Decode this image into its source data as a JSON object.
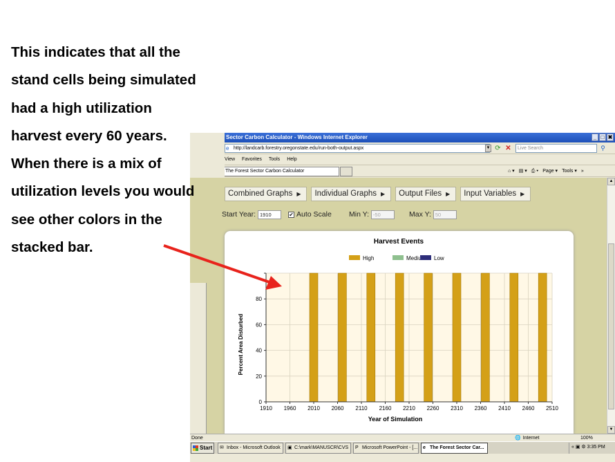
{
  "slide": {
    "lines": [
      "This indicates that all the",
      "stand cells being simulated",
      "had a high utilization",
      "harvest every 60 years.",
      "When there is a mix of",
      "utilization levels you would",
      "see other colors in the",
      "stacked bar."
    ]
  },
  "browser": {
    "title": "Sector Carbon Calculator - Windows Internet Explorer",
    "title_buttons": [
      "_",
      "□",
      "✖"
    ],
    "address": "http://landcarb.forestry.oregonstate.edu/run-both-output.aspx",
    "search_placeholder": "Live Search",
    "menu": [
      "View",
      "Favorites",
      "Tools",
      "Help"
    ],
    "tab_title": "The Forest Sector Carbon Calculator",
    "toolbar_items": [
      "⌂ ▾",
      "▤ ▾",
      "⎙ ▾",
      "Page ▾",
      "Tools ▾",
      "»"
    ],
    "status_text": "Done",
    "zone_text": "Internet",
    "zoom_text": "100%"
  },
  "page": {
    "menu": [
      "Combined Graphs",
      "Individual Graphs",
      "Output Files",
      "Input Variables"
    ],
    "start_year_label": "Start Year:",
    "start_year_value": "1910",
    "auto_scale_label": "Auto Scale",
    "auto_scale_checked": "✔",
    "min_y_label": "Min Y:",
    "min_y_value": "-50",
    "max_y_label": "Max Y:",
    "max_y_value": "50"
  },
  "chart_data": {
    "type": "bar",
    "stacked": true,
    "title": "Harvest Events",
    "xlabel": "Year of Simulation",
    "ylabel": "Percent Area Disturbed",
    "ylim": [
      0,
      100
    ],
    "xlim": [
      1910,
      2510
    ],
    "x_ticks": [
      1910,
      1960,
      2010,
      2060,
      2110,
      2160,
      2210,
      2260,
      2310,
      2360,
      2410,
      2460,
      2510
    ],
    "y_ticks": [
      0,
      20,
      40,
      60,
      80,
      100
    ],
    "x_tick_labels": [
      "1910",
      "1960",
      "2010",
      "2060",
      "2110",
      "2160",
      "2210",
      "2260",
      "2310",
      "2360",
      "2410",
      "2460",
      "2510"
    ],
    "y_tick_labels": [
      "0",
      "20",
      "40",
      "60",
      "80"
    ],
    "grid": true,
    "legend_position": "top",
    "x": [
      2010,
      2070,
      2130,
      2190,
      2250,
      2310,
      2370,
      2430,
      2490
    ],
    "series": [
      {
        "name": "High",
        "color": "#d4a017",
        "values": [
          100,
          100,
          100,
          100,
          100,
          100,
          100,
          100,
          100
        ]
      },
      {
        "name": "Medium",
        "color": "#8fc08f",
        "values": [
          0,
          0,
          0,
          0,
          0,
          0,
          0,
          0,
          0
        ]
      },
      {
        "name": "Low",
        "color": "#2e2e7a",
        "values": [
          0,
          0,
          0,
          0,
          0,
          0,
          0,
          0,
          0
        ]
      }
    ]
  },
  "taskbar": {
    "start_label": "Start",
    "tasks": [
      {
        "label": "Inbox - Microsoft Outlook",
        "icon": "✉"
      },
      {
        "label": "C:\\mark\\MANUSCR\\CVS",
        "icon": "▣"
      },
      {
        "label": "Microsoft PowerPoint - [...",
        "icon": "P"
      },
      {
        "label": "The Forest Sector Car...",
        "icon": "e"
      }
    ],
    "tray_text": "« ▣ ⚙  3:35 PM"
  },
  "colors": {
    "arrow": "#e8231c",
    "plot_background": "#fff8e6",
    "page_background": "#d6d3a4"
  }
}
